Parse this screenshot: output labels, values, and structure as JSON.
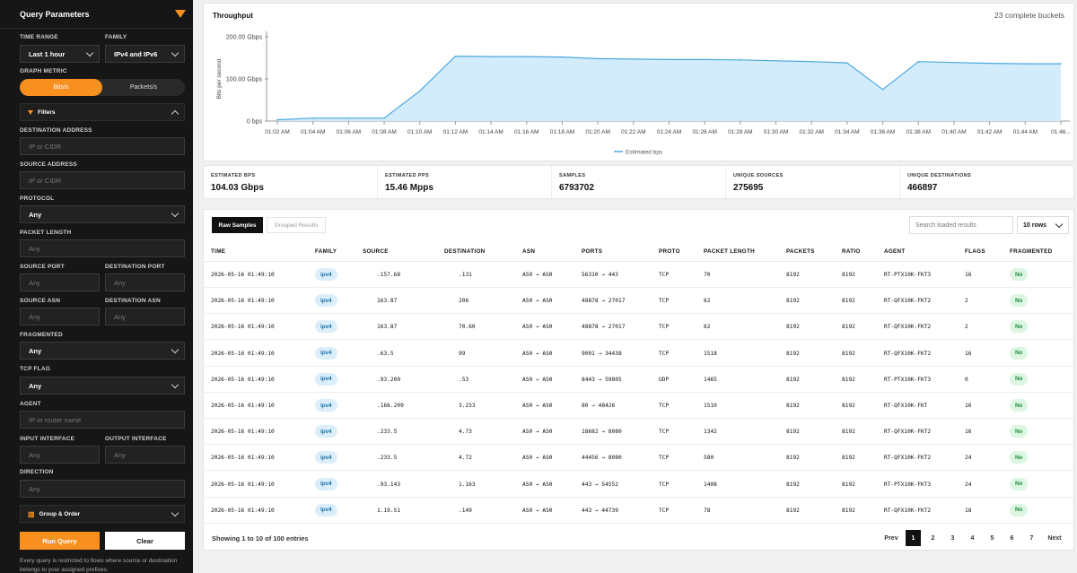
{
  "sidebar": {
    "title": "Query Parameters",
    "time_range_label": "TIME RANGE",
    "time_range_value": "Last 1 hour",
    "family_label": "FAMILY",
    "family_value": "IPv4 and IPv6",
    "graph_metric_label": "GRAPH METRIC",
    "metric_bits": "Bits/s",
    "metric_packets": "Packets/s",
    "filters_label": "Filters",
    "dest_addr_label": "DESTINATION ADDRESS",
    "dest_addr_ph": "IP or CIDR",
    "src_addr_label": "SOURCE ADDRESS",
    "src_addr_ph": "IP or CIDR",
    "protocol_label": "PROTOCOL",
    "protocol_value": "Any",
    "pkt_len_label": "PACKET LENGTH",
    "pkt_len_ph": "Any",
    "src_port_label": "SOURCE PORT",
    "src_port_ph": "Any",
    "dst_port_label": "DESTINATION PORT",
    "dst_port_ph": "Any",
    "src_asn_label": "SOURCE ASN",
    "src_asn_ph": "Any",
    "dst_asn_label": "DESTINATION ASN",
    "dst_asn_ph": "Any",
    "fragmented_label": "FRAGMENTED",
    "fragmented_value": "Any",
    "tcp_flag_label": "TCP FLAG",
    "tcp_flag_value": "Any",
    "agent_label": "AGENT",
    "agent_ph": "IP or router name",
    "in_if_label": "INPUT INTERFACE",
    "in_if_ph": "Any",
    "out_if_label": "OUTPUT INTERFACE",
    "out_if_ph": "Any",
    "direction_label": "DIRECTION",
    "direction_ph": "Any",
    "group_order_label": "Group & Order",
    "run_label": "Run Query",
    "clear_label": "Clear",
    "note": "Every query is restricted to flows where source or destination belongs to your assigned prefixes."
  },
  "throughput": {
    "title": "Throughput",
    "buckets": "23 complete buckets"
  },
  "chart_data": {
    "type": "area",
    "title": "",
    "xlabel": "",
    "ylabel": "Bits per second",
    "ylim": [
      0,
      200
    ],
    "y_ticks": [
      "0 bps",
      "100.00 Gbps",
      "200.00 Gbps"
    ],
    "x": [
      "01:02 AM",
      "01:04 AM",
      "01:06 AM",
      "01:08 AM",
      "01:10 AM",
      "01:12 AM",
      "01:14 AM",
      "01:16 AM",
      "01:18 AM",
      "01:20 AM",
      "01:22 AM",
      "01:24 AM",
      "01:26 AM",
      "01:28 AM",
      "01:30 AM",
      "01:32 AM",
      "01:34 AM",
      "01:36 AM",
      "01:38 AM",
      "01:40 AM",
      "01:42 AM",
      "01:44 AM",
      "01:46..."
    ],
    "series": [
      {
        "name": "Estimated bps",
        "color": "#4aa8e0",
        "fill": "#d3ecfb",
        "values": [
          3,
          7,
          7,
          7,
          71,
          154,
          153,
          153,
          152,
          148,
          147,
          146,
          146,
          145,
          143,
          141,
          138,
          75,
          141,
          139,
          137,
          136,
          136
        ]
      }
    ],
    "legend": "bottom-center"
  },
  "stats": [
    {
      "label": "ESTIMATED BPS",
      "value": "104.03 Gbps"
    },
    {
      "label": "ESTIMATED PPS",
      "value": "15.46 Mpps"
    },
    {
      "label": "SAMPLES",
      "value": "6793702"
    },
    {
      "label": "UNIQUE SOURCES",
      "value": "275695"
    },
    {
      "label": "UNIQUE DESTINATIONS",
      "value": "466897"
    }
  ],
  "table": {
    "tab_raw": "Raw Samples",
    "tab_grouped": "Grouped Results",
    "search_ph": "Search loaded results",
    "rows_select": "10 rows",
    "columns": [
      "TIME",
      "FAMILY",
      "SOURCE",
      "DESTINATION",
      "ASN",
      "PORTS",
      "PROTO",
      "PACKET LENGTH",
      "PACKETS",
      "RATIO",
      "AGENT",
      "FLAGS",
      "FRAGMENTED"
    ],
    "rows": [
      {
        "time": "2026-05-16 01:49:10",
        "family": "ipv4",
        "source": ".157.68",
        "destination": ".131",
        "asn": "AS0 → AS0",
        "ports": "56310 → 443",
        "proto": "TCP",
        "pktlen": "70",
        "packets": "8192",
        "ratio": "8192",
        "agent": "RT-PTX10K-FKT3",
        "flags": "16",
        "frag": "No"
      },
      {
        "time": "2026-05-16 01:49:10",
        "family": "ipv4",
        "source": "163.87",
        "destination": "206",
        "asn": "AS0 → AS0",
        "ports": "48878 → 27017",
        "proto": "TCP",
        "pktlen": "62",
        "packets": "8192",
        "ratio": "8192",
        "agent": "RT-QFX10K-FKT2",
        "flags": "2",
        "frag": "No"
      },
      {
        "time": "2026-05-16 01:49:10",
        "family": "ipv4",
        "source": "163.87",
        "destination": "70.60",
        "asn": "AS0 → AS0",
        "ports": "48878 → 27017",
        "proto": "TCP",
        "pktlen": "62",
        "packets": "8192",
        "ratio": "8192",
        "agent": "RT-QFX10K-FKT2",
        "flags": "2",
        "frag": "No"
      },
      {
        "time": "2026-05-16 01:49:10",
        "family": "ipv4",
        "source": ".63.5",
        "destination": "99",
        "asn": "AS0 → AS0",
        "ports": "9001 → 34438",
        "proto": "TCP",
        "pktlen": "1518",
        "packets": "8192",
        "ratio": "8192",
        "agent": "RT-QFX10K-FKT2",
        "flags": "16",
        "frag": "No"
      },
      {
        "time": "2026-05-16 01:49:10",
        "family": "ipv4",
        "source": ".93.209",
        "destination": ".53",
        "asn": "AS0 → AS0",
        "ports": "8443 → 59805",
        "proto": "UDP",
        "pktlen": "1465",
        "packets": "8192",
        "ratio": "8192",
        "agent": "RT-PTX10K-FKT3",
        "flags": "0",
        "frag": "No"
      },
      {
        "time": "2026-05-16 01:49:10",
        "family": "ipv4",
        "source": ".166.209",
        "destination": "3.233",
        "asn": "AS0 → AS0",
        "ports": "80 → 48426",
        "proto": "TCP",
        "pktlen": "1510",
        "packets": "8192",
        "ratio": "8192",
        "agent": "RT-QFX10K-FKT",
        "flags": "16",
        "frag": "No"
      },
      {
        "time": "2026-05-16 01:49:10",
        "family": "ipv4",
        "source": ".233.5",
        "destination": "4.73",
        "asn": "AS0 → AS0",
        "ports": "18682 → 8080",
        "proto": "TCP",
        "pktlen": "1342",
        "packets": "8192",
        "ratio": "8192",
        "agent": "RT-QFX10K-FKT2",
        "flags": "16",
        "frag": "No"
      },
      {
        "time": "2026-05-16 01:49:10",
        "family": "ipv4",
        "source": ".233.5",
        "destination": "4.72",
        "asn": "AS0 → AS0",
        "ports": "44456 → 8080",
        "proto": "TCP",
        "pktlen": "580",
        "packets": "8192",
        "ratio": "8192",
        "agent": "RT-QFX10K-FKT2",
        "flags": "24",
        "frag": "No"
      },
      {
        "time": "2026-05-16 01:49:10",
        "family": "ipv4",
        "source": ".93.143",
        "destination": "1.163",
        "asn": "AS0 → AS0",
        "ports": "443 → 54552",
        "proto": "TCP",
        "pktlen": "1408",
        "packets": "8192",
        "ratio": "8192",
        "agent": "RT-PTX10K-FKT3",
        "flags": "24",
        "frag": "No"
      },
      {
        "time": "2026-05-16 01:49:10",
        "family": "ipv4",
        "source": "1.19.51",
        "destination": ".149",
        "asn": "AS0 → AS0",
        "ports": "443 → 44739",
        "proto": "TCP",
        "pktlen": "78",
        "packets": "8192",
        "ratio": "8192",
        "agent": "RT-QFX10K-FKT2",
        "flags": "18",
        "frag": "No"
      }
    ],
    "footer": "Showing 1 to 10 of 100 entries",
    "pagination": {
      "prev": "Prev",
      "pages": [
        "1",
        "2",
        "3",
        "4",
        "5",
        "6",
        "7"
      ],
      "current": "1",
      "next": "Next"
    }
  }
}
